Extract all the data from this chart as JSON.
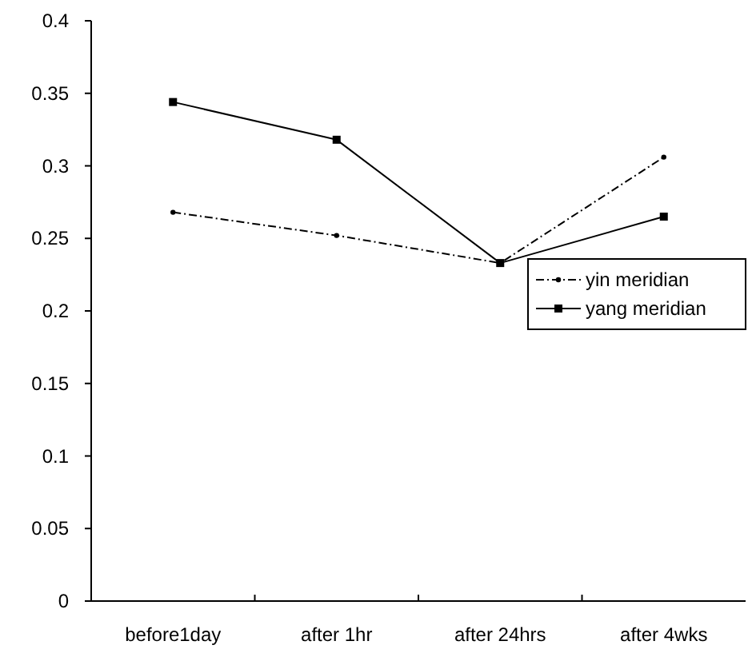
{
  "chart_data": {
    "type": "line",
    "categories": [
      "before1day",
      "after 1hr",
      "after 24hrs",
      "after 4wks"
    ],
    "series": [
      {
        "name": "yin meridian",
        "color": "#000000",
        "values": [
          0.268,
          0.252,
          0.233,
          0.306
        ],
        "line_style": "dashdot",
        "marker": "circle"
      },
      {
        "name": "yang meridian",
        "color": "#000000",
        "values": [
          0.344,
          0.318,
          0.233,
          0.265
        ],
        "line_style": "solid",
        "marker": "square"
      }
    ],
    "ylim": [
      0,
      0.4
    ],
    "yticks": [
      0,
      0.05,
      0.1,
      0.15,
      0.2,
      0.25,
      0.3,
      0.35,
      0.4
    ],
    "grid": false,
    "legend": "right"
  }
}
